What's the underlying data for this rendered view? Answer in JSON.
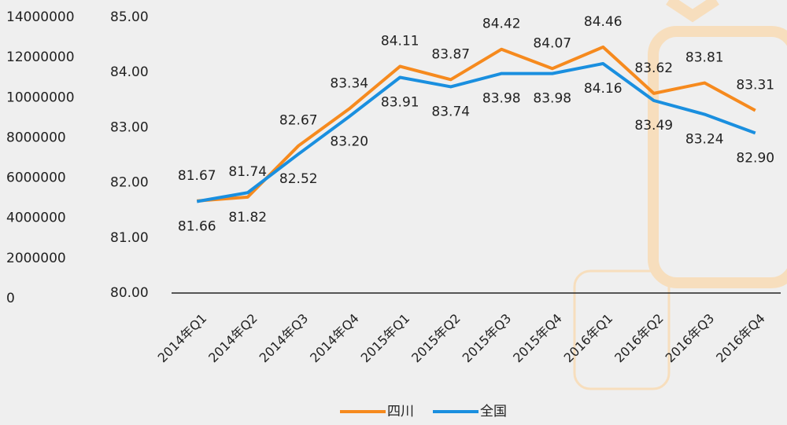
{
  "chart_data": {
    "type": "line",
    "categories": [
      "2014年Q1",
      "2014年Q2",
      "2014年Q3",
      "2014年Q4",
      "2015年Q1",
      "2015年Q2",
      "2015年Q3",
      "2015年Q4",
      "2016年Q1",
      "2016年Q2",
      "2016年Q3",
      "2016年Q4"
    ],
    "ylim": [
      0,
      14000000
    ],
    "yticks": [
      0,
      2000000,
      4000000,
      6000000,
      8000000,
      10000000,
      12000000,
      14000000
    ],
    "y2lim": [
      80,
      85
    ],
    "y2ticks": [
      {
        "value": 80,
        "label": "80.00"
      },
      {
        "value": 81,
        "label": "81.00"
      },
      {
        "value": 82,
        "label": "82.00"
      },
      {
        "value": 83,
        "label": "83.00"
      },
      {
        "value": 84,
        "label": "84.00"
      },
      {
        "value": 85,
        "label": "85.00"
      }
    ],
    "legend": "bottom",
    "series": [
      {
        "name": "四川",
        "color": "#f68a1e",
        "axis": "y2",
        "values": [
          81.67,
          81.74,
          82.67,
          83.34,
          84.11,
          83.87,
          84.42,
          84.07,
          84.46,
          83.62,
          83.81,
          83.31
        ],
        "value_labels": [
          "81.67",
          "81.74",
          "82.67",
          "83.34",
          "84.11",
          "83.87",
          "84.42",
          "84.07",
          "84.46",
          "83.62",
          "83.81",
          "83.31"
        ]
      },
      {
        "name": "全国",
        "color": "#1a8fdf",
        "axis": "y2",
        "values": [
          81.66,
          81.82,
          82.52,
          83.2,
          83.91,
          83.74,
          83.98,
          83.98,
          84.16,
          83.49,
          83.24,
          82.9
        ],
        "value_labels": [
          "81.66",
          "81.82",
          "82.52",
          "83.20",
          "83.91",
          "83.74",
          "83.98",
          "83.98",
          "84.16",
          "83.49",
          "83.24",
          "82.90"
        ]
      }
    ]
  }
}
